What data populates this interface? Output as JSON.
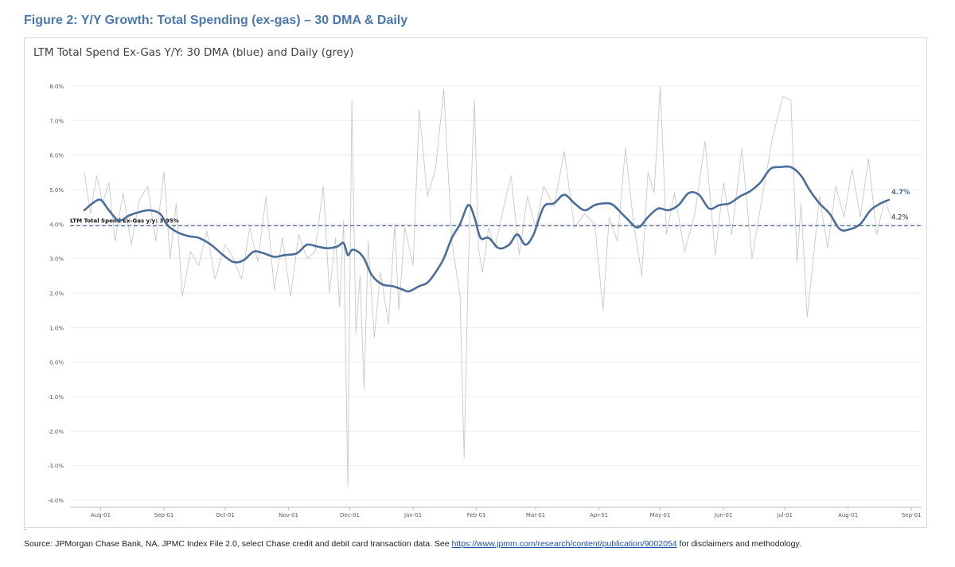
{
  "figure_title": "Figure 2: Y/Y Growth: Total Spending (ex-gas) – 30 DMA & Daily",
  "footnote_dash": "-",
  "source": {
    "prefix": "Source: JPMorgan Chase Bank, NA, JPMC Index File 2.0, select Chase credit and debit card transaction data. See ",
    "link_text": "https://www.jpmm.com/research/content/publication/9002054",
    "suffix": " for disclaimers and methodology."
  },
  "colors": {
    "title": "#4a78ae",
    "dma_line": "#4a6e9c",
    "daily_line": "#c9c9c9",
    "reference_line": "#4a6e9c",
    "grid": "#ececec"
  },
  "chart_data": {
    "type": "line",
    "title": "LTM Total Spend Ex-Gas Y/Y: 30 DMA (blue) and Daily (grey)",
    "xlabel": "",
    "ylabel": "",
    "ylim": [
      -4.0,
      8.0
    ],
    "grid": true,
    "yticks": [
      "-4.0%",
      "-3.0%",
      "-2.0%",
      "-1.0%",
      "0.0%",
      "1.0%",
      "2.0%",
      "3.0%",
      "4.0%",
      "5.0%",
      "6.0%",
      "7.0%",
      "8.0%"
    ],
    "xlim": [
      "2023-07-17",
      "2024-09-06"
    ],
    "xticks": [
      {
        "date": "2023-08-01",
        "label": "Aug-01"
      },
      {
        "date": "2023-09-01",
        "label": "Sep-01"
      },
      {
        "date": "2023-10-01",
        "label": "Oct-01"
      },
      {
        "date": "2023-11-01",
        "label": "Nov-01"
      },
      {
        "date": "2023-12-01",
        "label": "Dec-01"
      },
      {
        "date": "2024-01-01",
        "label": "Jan-01"
      },
      {
        "date": "2024-02-01",
        "label": "Feb-01"
      },
      {
        "date": "2024-03-01",
        "label": "Mar-01"
      },
      {
        "date": "2024-04-01",
        "label": "Apr-01"
      },
      {
        "date": "2024-05-01",
        "label": "May-01"
      },
      {
        "date": "2024-06-01",
        "label": "Jun-01"
      },
      {
        "date": "2024-07-01",
        "label": "Jul-01"
      },
      {
        "date": "2024-08-01",
        "label": "Aug-01"
      },
      {
        "date": "2024-09-01",
        "label": "Sep-01"
      }
    ],
    "reference_line": {
      "value": 3.95,
      "label": "LTM Total Spend Ex-Gas y/y: 3.95%"
    },
    "end_labels": {
      "dma": "4.7%",
      "daily": "4.2%"
    },
    "series": [
      {
        "key": "dma",
        "x": [
          "2023-07-24",
          "2023-07-28",
          "2023-08-01",
          "2023-08-05",
          "2023-08-10",
          "2023-08-15",
          "2023-08-20",
          "2023-08-25",
          "2023-08-30",
          "2023-09-03",
          "2023-09-08",
          "2023-09-13",
          "2023-09-18",
          "2023-09-24",
          "2023-09-30",
          "2023-10-05",
          "2023-10-10",
          "2023-10-15",
          "2023-10-20",
          "2023-10-25",
          "2023-10-30",
          "2023-11-05",
          "2023-11-10",
          "2023-11-15",
          "2023-11-20",
          "2023-11-25",
          "2023-11-28",
          "2023-11-30",
          "2023-12-02",
          "2023-12-05",
          "2023-12-08",
          "2023-12-12",
          "2023-12-17",
          "2023-12-22",
          "2023-12-27",
          "2023-12-30",
          "2024-01-04",
          "2024-01-08",
          "2024-01-12",
          "2024-01-16",
          "2024-01-20",
          "2024-01-24",
          "2024-01-28",
          "2024-01-31",
          "2024-02-03",
          "2024-02-07",
          "2024-02-12",
          "2024-02-17",
          "2024-02-21",
          "2024-02-25",
          "2024-02-29",
          "2024-03-05",
          "2024-03-10",
          "2024-03-15",
          "2024-03-20",
          "2024-03-25",
          "2024-03-30",
          "2024-04-04",
          "2024-04-08",
          "2024-04-14",
          "2024-04-20",
          "2024-04-25",
          "2024-04-30",
          "2024-05-05",
          "2024-05-10",
          "2024-05-15",
          "2024-05-20",
          "2024-05-25",
          "2024-05-30",
          "2024-06-04",
          "2024-06-09",
          "2024-06-14",
          "2024-06-19",
          "2024-06-24",
          "2024-06-29",
          "2024-07-04",
          "2024-07-09",
          "2024-07-13",
          "2024-07-18",
          "2024-07-23",
          "2024-07-28",
          "2024-08-02",
          "2024-08-07",
          "2024-08-12",
          "2024-08-17",
          "2024-08-21"
        ],
        "y": [
          4.4,
          4.6,
          4.7,
          4.4,
          4.1,
          4.25,
          4.35,
          4.4,
          4.3,
          3.95,
          3.75,
          3.65,
          3.6,
          3.4,
          3.1,
          2.9,
          2.95,
          3.2,
          3.15,
          3.05,
          3.1,
          3.15,
          3.4,
          3.35,
          3.3,
          3.35,
          3.45,
          3.1,
          3.25,
          3.2,
          3.0,
          2.5,
          2.25,
          2.2,
          2.1,
          2.05,
          2.2,
          2.3,
          2.6,
          3.0,
          3.6,
          4.0,
          4.55,
          4.2,
          3.6,
          3.6,
          3.3,
          3.4,
          3.7,
          3.4,
          3.7,
          4.5,
          4.6,
          4.85,
          4.6,
          4.4,
          4.55,
          4.6,
          4.55,
          4.2,
          3.9,
          4.2,
          4.45,
          4.4,
          4.55,
          4.9,
          4.85,
          4.45,
          4.55,
          4.6,
          4.8,
          4.95,
          5.2,
          5.6,
          5.65,
          5.65,
          5.4,
          5.0,
          4.6,
          4.3,
          3.85,
          3.85,
          4.0,
          4.4,
          4.6,
          4.7
        ]
      },
      {
        "key": "daily",
        "x": [
          "2023-07-24",
          "2023-07-27",
          "2023-07-30",
          "2023-08-02",
          "2023-08-05",
          "2023-08-08",
          "2023-08-12",
          "2023-08-16",
          "2023-08-20",
          "2023-08-24",
          "2023-08-28",
          "2023-09-01",
          "2023-09-04",
          "2023-09-07",
          "2023-09-10",
          "2023-09-14",
          "2023-09-18",
          "2023-09-22",
          "2023-09-26",
          "2023-10-01",
          "2023-10-05",
          "2023-10-09",
          "2023-10-13",
          "2023-10-17",
          "2023-10-21",
          "2023-10-25",
          "2023-10-29",
          "2023-11-02",
          "2023-11-06",
          "2023-11-10",
          "2023-11-14",
          "2023-11-18",
          "2023-11-21",
          "2023-11-24",
          "2023-11-26",
          "2023-11-28",
          "2023-11-30",
          "2023-12-02",
          "2023-12-04",
          "2023-12-06",
          "2023-12-08",
          "2023-12-10",
          "2023-12-13",
          "2023-12-16",
          "2023-12-20",
          "2023-12-23",
          "2023-12-25",
          "2023-12-28",
          "2024-01-01",
          "2024-01-04",
          "2024-01-08",
          "2024-01-12",
          "2024-01-16",
          "2024-01-20",
          "2024-01-24",
          "2024-01-26",
          "2024-01-28",
          "2024-01-31",
          "2024-02-02",
          "2024-02-04",
          "2024-02-07",
          "2024-02-10",
          "2024-02-14",
          "2024-02-18",
          "2024-02-22",
          "2024-02-26",
          "2024-03-01",
          "2024-03-05",
          "2024-03-10",
          "2024-03-15",
          "2024-03-20",
          "2024-03-25",
          "2024-03-30",
          "2024-04-03",
          "2024-04-06",
          "2024-04-10",
          "2024-04-14",
          "2024-04-18",
          "2024-04-22",
          "2024-04-25",
          "2024-04-28",
          "2024-05-01",
          "2024-05-04",
          "2024-05-08",
          "2024-05-13",
          "2024-05-18",
          "2024-05-23",
          "2024-05-28",
          "2024-06-01",
          "2024-06-05",
          "2024-06-10",
          "2024-06-15",
          "2024-06-20",
          "2024-06-25",
          "2024-06-30",
          "2024-07-04",
          "2024-07-07",
          "2024-07-09",
          "2024-07-12",
          "2024-07-15",
          "2024-07-18",
          "2024-07-22",
          "2024-07-26",
          "2024-07-30",
          "2024-08-03",
          "2024-08-07",
          "2024-08-11",
          "2024-08-15",
          "2024-08-19",
          "2024-08-22"
        ],
        "y": [
          5.5,
          4.3,
          5.4,
          4.6,
          5.2,
          3.5,
          4.9,
          3.4,
          4.7,
          5.1,
          3.5,
          5.5,
          3.0,
          4.6,
          1.9,
          3.2,
          2.8,
          3.8,
          2.4,
          3.4,
          3.0,
          2.4,
          3.9,
          2.9,
          4.8,
          2.1,
          3.6,
          1.9,
          3.7,
          3.0,
          3.2,
          5.1,
          2.0,
          3.6,
          1.6,
          4.1,
          -3.6,
          7.6,
          0.8,
          2.5,
          -0.8,
          3.5,
          0.7,
          2.6,
          1.1,
          4.0,
          1.5,
          3.9,
          2.8,
          7.3,
          4.8,
          5.6,
          7.9,
          3.5,
          1.9,
          -2.8,
          2.8,
          7.6,
          3.3,
          2.6,
          3.9,
          3.3,
          4.4,
          5.4,
          3.1,
          4.8,
          3.9,
          5.1,
          4.5,
          6.1,
          3.9,
          4.3,
          4.0,
          1.5,
          4.2,
          3.5,
          6.2,
          4.0,
          2.5,
          5.5,
          4.9,
          8.0,
          3.7,
          4.9,
          3.2,
          4.3,
          6.4,
          3.1,
          5.2,
          3.7,
          6.2,
          3.0,
          4.8,
          6.5,
          7.7,
          7.6,
          2.9,
          4.6,
          1.3,
          3.0,
          4.8,
          3.3,
          5.1,
          4.2,
          5.6,
          4.2,
          5.9,
          3.7,
          4.7,
          4.2
        ]
      }
    ]
  }
}
